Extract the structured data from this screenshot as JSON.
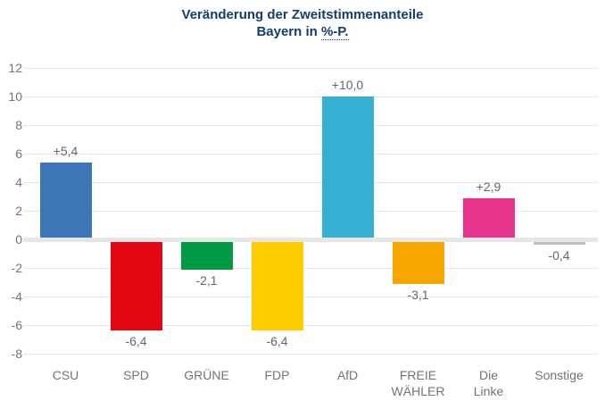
{
  "title": {
    "line1": "Veränderung der Zweitstimmenanteile",
    "line2_prefix": "Bayern in",
    "line2_abbr": "%-P."
  },
  "chart_data": {
    "type": "bar",
    "title": "Veränderung der Zweitstimmenanteile",
    "subtitle": "Bayern in %-P.",
    "categories": [
      "CSU",
      "SPD",
      "GRÜNE",
      "FDP",
      "AfD",
      "FREIE WÄHLER",
      "Die Linke",
      "Sonstige"
    ],
    "category_lines": [
      [
        "CSU"
      ],
      [
        "SPD"
      ],
      [
        "GRÜNE"
      ],
      [
        "FDP"
      ],
      [
        "AfD"
      ],
      [
        "FREIE",
        "WÄHLER"
      ],
      [
        "Die",
        "Linke"
      ],
      [
        "Sonstige"
      ]
    ],
    "values": [
      5.4,
      -6.4,
      -2.1,
      -6.4,
      10.0,
      -3.1,
      2.9,
      -0.4
    ],
    "value_labels": [
      "+5,4",
      "-6,4",
      "-2,1",
      "-6,4",
      "+10,0",
      "-3,1",
      "+2,9",
      "-0,4"
    ],
    "bar_colors": [
      "#3d76b6",
      "#e30613",
      "#009a44",
      "#ffcc00",
      "#37aed3",
      "#f7a600",
      "#e6338b",
      "#b9c2c7"
    ],
    "ylim": [
      -8,
      12
    ],
    "yticks": [
      12,
      10,
      8,
      6,
      4,
      2,
      0,
      -2,
      -4,
      -6,
      -8
    ],
    "grid": true,
    "legend": "none",
    "xlabel": "",
    "ylabel": ""
  },
  "colors": {
    "title_text": "#143c6e",
    "grid_line": "#e7e7e7",
    "zero_band": "#e6e6e6",
    "tick_text": "#737373",
    "value_text": "#666666",
    "category_text": "#737373",
    "background": "#ffffff"
  }
}
